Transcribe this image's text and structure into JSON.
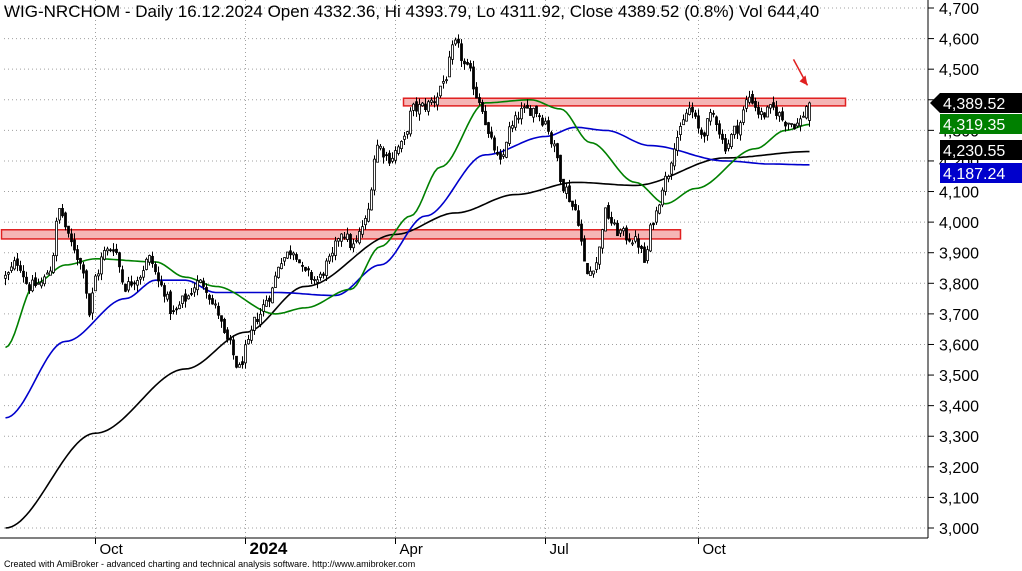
{
  "chart_data": {
    "type": "candlestick",
    "title": "WIG-NRCHOM - Daily 16.12.2024 Open 4332.36, Hi 4393.79, Lo 4311.92, Close 4389.52 (0.8%) Vol 644,40",
    "footer": "Created with AmiBroker - advanced charting and technical analysis software. http://www.amibroker.com",
    "ylim": [
      2950,
      4720
    ],
    "y_ticks": [
      {
        "v": 3000,
        "label": "3,000"
      },
      {
        "v": 3100,
        "label": "3,100"
      },
      {
        "v": 3200,
        "label": "3,200"
      },
      {
        "v": 3300,
        "label": "3,300"
      },
      {
        "v": 3400,
        "label": "3,400"
      },
      {
        "v": 3500,
        "label": "3,500"
      },
      {
        "v": 3600,
        "label": "3,600"
      },
      {
        "v": 3700,
        "label": "3,700"
      },
      {
        "v": 3800,
        "label": "3,800"
      },
      {
        "v": 3900,
        "label": "3,900"
      },
      {
        "v": 4000,
        "label": "4,000"
      },
      {
        "v": 4100,
        "label": "4,100"
      },
      {
        "v": 4200,
        "label": "4,200"
      },
      {
        "v": 4300,
        "label": "4,300"
      },
      {
        "v": 4400,
        "label": "4,400"
      },
      {
        "v": 4500,
        "label": "4,500"
      },
      {
        "v": 4600,
        "label": "4,600"
      },
      {
        "v": 4700,
        "label": "4,700"
      }
    ],
    "x_ticks": [
      {
        "label": "Oct",
        "bold": false
      },
      {
        "label": "2024",
        "bold": true
      },
      {
        "label": "Apr",
        "bold": false
      },
      {
        "label": "Jul",
        "bold": false
      },
      {
        "label": "Oct",
        "bold": false
      }
    ],
    "x_tick_index": [
      30,
      80,
      130,
      180,
      231
    ],
    "num_bars": 270,
    "price_anchors": [
      [
        0,
        3820
      ],
      [
        4,
        3870
      ],
      [
        8,
        3790
      ],
      [
        12,
        3800
      ],
      [
        15,
        3850
      ],
      [
        18,
        4040
      ],
      [
        22,
        3930
      ],
      [
        26,
        3850
      ],
      [
        28,
        3700
      ],
      [
        30,
        3820
      ],
      [
        33,
        3900
      ],
      [
        36,
        3920
      ],
      [
        40,
        3790
      ],
      [
        44,
        3820
      ],
      [
        48,
        3880
      ],
      [
        52,
        3790
      ],
      [
        56,
        3700
      ],
      [
        60,
        3750
      ],
      [
        64,
        3800
      ],
      [
        66,
        3800
      ],
      [
        70,
        3720
      ],
      [
        74,
        3610
      ],
      [
        78,
        3520
      ],
      [
        80,
        3580
      ],
      [
        84,
        3690
      ],
      [
        88,
        3760
      ],
      [
        92,
        3880
      ],
      [
        96,
        3910
      ],
      [
        100,
        3830
      ],
      [
        104,
        3810
      ],
      [
        108,
        3870
      ],
      [
        112,
        3970
      ],
      [
        116,
        3920
      ],
      [
        120,
        4000
      ],
      [
        124,
        4250
      ],
      [
        128,
        4210
      ],
      [
        132,
        4250
      ],
      [
        136,
        4370
      ],
      [
        140,
        4380
      ],
      [
        143,
        4400
      ],
      [
        146,
        4460
      ],
      [
        150,
        4580
      ],
      [
        154,
        4500
      ],
      [
        158,
        4400
      ],
      [
        162,
        4260
      ],
      [
        165,
        4190
      ],
      [
        168,
        4300
      ],
      [
        172,
        4360
      ],
      [
        176,
        4370
      ],
      [
        180,
        4330
      ],
      [
        183,
        4240
      ],
      [
        186,
        4120
      ],
      [
        190,
        4040
      ],
      [
        194,
        3830
      ],
      [
        197,
        3870
      ],
      [
        200,
        4030
      ],
      [
        204,
        3970
      ],
      [
        208,
        3950
      ],
      [
        211,
        3930
      ],
      [
        213,
        3870
      ],
      [
        216,
        4010
      ],
      [
        220,
        4140
      ],
      [
        224,
        4280
      ],
      [
        228,
        4370
      ],
      [
        232,
        4290
      ],
      [
        236,
        4350
      ],
      [
        240,
        4250
      ],
      [
        244,
        4310
      ],
      [
        248,
        4410
      ],
      [
        252,
        4350
      ],
      [
        256,
        4370
      ],
      [
        260,
        4330
      ],
      [
        264,
        4320
      ],
      [
        268,
        4389.52
      ]
    ],
    "series": [
      {
        "name": "",
        "color": "#000000",
        "anchors": [
          [
            0,
            3000
          ],
          [
            30,
            3310
          ],
          [
            60,
            3520
          ],
          [
            80,
            3640
          ],
          [
            100,
            3790
          ],
          [
            130,
            3960
          ],
          [
            150,
            4030
          ],
          [
            170,
            4090
          ],
          [
            190,
            4130
          ],
          [
            210,
            4120
          ],
          [
            240,
            4210
          ],
          [
            268,
            4230.55
          ]
        ]
      },
      {
        "name": "",
        "color": "#0000cc",
        "anchors": [
          [
            0,
            3360
          ],
          [
            20,
            3610
          ],
          [
            40,
            3750
          ],
          [
            50,
            3810
          ],
          [
            60,
            3810
          ],
          [
            70,
            3770
          ],
          [
            90,
            3770
          ],
          [
            110,
            3760
          ],
          [
            125,
            3860
          ],
          [
            140,
            4020
          ],
          [
            160,
            4220
          ],
          [
            180,
            4280
          ],
          [
            190,
            4310
          ],
          [
            200,
            4300
          ],
          [
            215,
            4250
          ],
          [
            240,
            4200
          ],
          [
            255,
            4190
          ],
          [
            268,
            4187.24
          ]
        ]
      },
      {
        "name": "",
        "color": "#008000",
        "anchors": [
          [
            0,
            3590
          ],
          [
            10,
            3800
          ],
          [
            20,
            3860
          ],
          [
            30,
            3880
          ],
          [
            50,
            3870
          ],
          [
            60,
            3820
          ],
          [
            70,
            3790
          ],
          [
            90,
            3700
          ],
          [
            100,
            3720
          ],
          [
            115,
            3780
          ],
          [
            125,
            3920
          ],
          [
            135,
            4020
          ],
          [
            145,
            4180
          ],
          [
            160,
            4390
          ],
          [
            175,
            4400
          ],
          [
            185,
            4370
          ],
          [
            195,
            4260
          ],
          [
            210,
            4130
          ],
          [
            220,
            4060
          ],
          [
            230,
            4110
          ],
          [
            250,
            4240
          ],
          [
            260,
            4300
          ],
          [
            268,
            4319.35
          ]
        ]
      }
    ],
    "resistance_zones": [
      {
        "from_index": 134,
        "to_index": 280,
        "low": 4380,
        "high": 4405
      },
      {
        "from_index": 0,
        "to_index": 225,
        "low": 3945,
        "high": 3975
      }
    ],
    "value_labels": [
      {
        "text": "4,389.52",
        "v": 4389.52,
        "bg": "#000000",
        "fg": "#ffffff"
      },
      {
        "text": "4,319.35",
        "v": 4319.35,
        "bg": "#008000",
        "fg": "#ffffff"
      },
      {
        "text": "4,230.55",
        "v": 4230.55,
        "bg": "#000000",
        "fg": "#ffffff"
      },
      {
        "text": "4,187.24",
        "v": 4187.24,
        "bg": "#0000cc",
        "fg": "#ffffff"
      }
    ],
    "annotation": {
      "type": "arrow",
      "color": "#e02020",
      "target_index": 262,
      "target_v": 4460
    },
    "colors": {
      "zone_fill": "#f5b5b5",
      "zone_stroke": "#e02020",
      "grid": "#a0a0a0"
    }
  }
}
